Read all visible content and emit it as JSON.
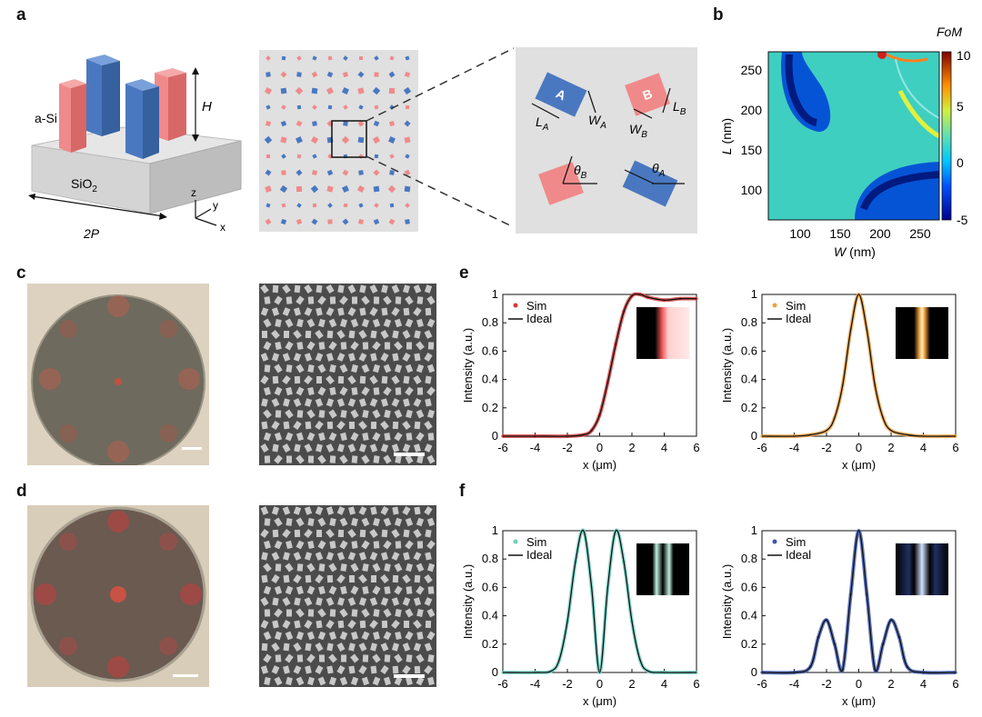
{
  "figure": {
    "panel_letters": {
      "a": "a",
      "b": "b",
      "c": "c",
      "d": "d",
      "e": "e",
      "f": "f"
    },
    "panel_a": {
      "material_label": "a-Si",
      "substrate_label": "SiO",
      "substrate_subscript": "2",
      "height_label": "H",
      "period_label": "2P",
      "axis_z": "z",
      "axis_y": "y",
      "axis_x": "x",
      "pillar_A": "A",
      "pillar_B": "B",
      "LA": "L",
      "LA_sub": "A",
      "WA": "W",
      "WA_sub": "A",
      "LB": "L",
      "LB_sub": "B",
      "WB": "W",
      "WB_sub": "B",
      "thetaB": "θ",
      "thetaB_sub": "B",
      "thetaA": "θ",
      "thetaA_sub": "A"
    },
    "panel_b": {
      "colorbar_title": "FoM",
      "colorbar_ticks": [
        "10",
        "5",
        "0",
        "-5"
      ],
      "y_tick_labels": [
        "250",
        "200",
        "150",
        "100"
      ],
      "x_tick_labels": [
        "100",
        "150",
        "200",
        "250"
      ],
      "ylabel_var": "L",
      "ylabel_unit": " (nm)",
      "xlabel_var": "W",
      "xlabel_unit": " (nm)"
    },
    "plot_common": {
      "ylabel": "Intensity (a.u.)",
      "xlabel": "x (μm)",
      "x_ticks": [
        "-6",
        "-4",
        "-2",
        "0",
        "2",
        "4",
        "6"
      ],
      "y_ticks": [
        "0",
        "0.2",
        "0.4",
        "0.6",
        "0.8",
        "1"
      ],
      "legend_sim": "Sim",
      "legend_ideal": "Ideal"
    },
    "colors": {
      "pillar_pink": "#f08a8a",
      "pillar_blue": "#4a78c0",
      "sim_red": "#d23a3a",
      "sim_orange": "#f0a040",
      "sim_teal": "#6fcfc0",
      "sim_blue": "#3a55b0",
      "ideal_line": "#111111"
    }
  },
  "chart_data": [
    {
      "id": "e-left",
      "type": "line",
      "xlim": [
        -6,
        6
      ],
      "ylim": [
        0,
        1
      ],
      "series": [
        {
          "name": "Sim",
          "x": [
            -6,
            -4,
            -2,
            -1,
            -0.5,
            0,
            0.5,
            1,
            1.5,
            2,
            2.5,
            3,
            4,
            5,
            6
          ],
          "values": [
            0,
            0,
            0,
            0.01,
            0.04,
            0.15,
            0.38,
            0.65,
            0.88,
            0.99,
            1.0,
            0.98,
            0.96,
            0.97,
            0.97
          ]
        },
        {
          "name": "Ideal",
          "x": [
            -6,
            -4,
            -2,
            -1,
            -0.5,
            0,
            0.5,
            1,
            1.5,
            2,
            2.5,
            3,
            4,
            5,
            6
          ],
          "values": [
            0,
            0,
            0,
            0.01,
            0.04,
            0.15,
            0.38,
            0.65,
            0.88,
            0.99,
            1.0,
            0.98,
            0.96,
            0.97,
            0.97
          ]
        }
      ]
    },
    {
      "id": "e-right",
      "type": "line",
      "xlim": [
        -6,
        6
      ],
      "ylim": [
        0,
        1
      ],
      "series": [
        {
          "name": "Sim",
          "x": [
            -6,
            -4,
            -3,
            -2,
            -1.5,
            -1,
            -0.5,
            0,
            0.5,
            1,
            1.5,
            2,
            3,
            4,
            6
          ],
          "values": [
            0,
            0,
            0.01,
            0.04,
            0.13,
            0.36,
            0.75,
            1.0,
            0.75,
            0.36,
            0.13,
            0.04,
            0.01,
            0,
            0
          ]
        },
        {
          "name": "Ideal",
          "x": [
            -6,
            -4,
            -3,
            -2,
            -1.5,
            -1,
            -0.5,
            0,
            0.5,
            1,
            1.5,
            2,
            3,
            4,
            6
          ],
          "values": [
            0,
            0,
            0.01,
            0.04,
            0.13,
            0.36,
            0.75,
            1.0,
            0.75,
            0.36,
            0.13,
            0.04,
            0.01,
            0,
            0
          ]
        }
      ]
    },
    {
      "id": "f-left",
      "type": "line",
      "xlim": [
        -6,
        6
      ],
      "ylim": [
        0,
        1
      ],
      "series": [
        {
          "name": "Sim",
          "x": [
            -6,
            -4,
            -3,
            -2.5,
            -2,
            -1.5,
            -1,
            -0.5,
            0,
            0.5,
            1,
            1.5,
            2,
            2.5,
            3,
            4,
            6
          ],
          "values": [
            0,
            0,
            0.01,
            0.09,
            0.36,
            0.78,
            1.0,
            0.6,
            0,
            0.6,
            1.0,
            0.78,
            0.36,
            0.09,
            0.01,
            0,
            0
          ]
        },
        {
          "name": "Ideal",
          "x": [
            -6,
            -4,
            -3,
            -2.5,
            -2,
            -1.5,
            -1,
            -0.5,
            0,
            0.5,
            1,
            1.5,
            2,
            2.5,
            3,
            4,
            6
          ],
          "values": [
            0,
            0,
            0.01,
            0.09,
            0.36,
            0.78,
            1.0,
            0.6,
            0,
            0.6,
            1.0,
            0.78,
            0.36,
            0.09,
            0.01,
            0,
            0
          ]
        }
      ]
    },
    {
      "id": "f-right",
      "type": "line",
      "xlim": [
        -6,
        6
      ],
      "ylim": [
        0,
        1
      ],
      "series": [
        {
          "name": "Sim",
          "x": [
            -6,
            -4,
            -3,
            -2.5,
            -2,
            -1.5,
            -1,
            -0.5,
            0,
            0.5,
            1,
            1.5,
            2,
            2.5,
            3,
            4,
            6
          ],
          "values": [
            0,
            0,
            0.04,
            0.25,
            0.37,
            0.2,
            0.02,
            0.55,
            1.0,
            0.55,
            0.02,
            0.2,
            0.37,
            0.25,
            0.04,
            0,
            0
          ]
        },
        {
          "name": "Ideal",
          "x": [
            -6,
            -4,
            -3,
            -2.5,
            -2,
            -1.5,
            -1,
            -0.5,
            0,
            0.5,
            1,
            1.5,
            2,
            2.5,
            3,
            4,
            6
          ],
          "values": [
            0,
            0,
            0.04,
            0.25,
            0.37,
            0.2,
            0.02,
            0.55,
            1.0,
            0.55,
            0.02,
            0.2,
            0.37,
            0.25,
            0.04,
            0,
            0
          ]
        }
      ]
    }
  ]
}
